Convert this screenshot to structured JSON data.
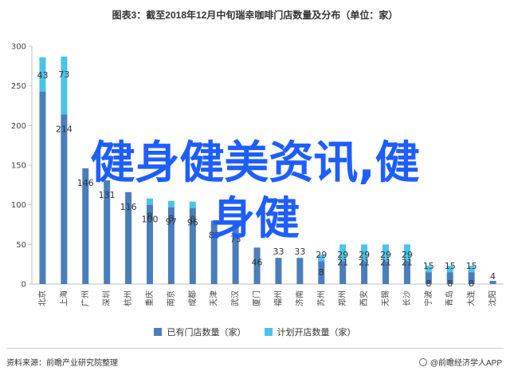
{
  "title": "图表3：截至2018年12月中旬瑞幸咖啡门店数量及分布（单位：家）",
  "overlay_lines": [
    "健身健美资讯,健",
    "身健"
  ],
  "footer": {
    "source": "资料来源：前瞻产业研究院整理",
    "brand": "@前瞻经济学人APP"
  },
  "colors": {
    "existing": "#4a7ebb",
    "planned": "#4bc3e8"
  },
  "chart_data": {
    "type": "bar",
    "stacked": true,
    "categories": [
      "北京",
      "上海",
      "广州",
      "深圳",
      "杭州",
      "重庆",
      "南京",
      "成都",
      "天津",
      "武汉",
      "厦门",
      "福州",
      "济南",
      "苏州",
      "郑州",
      "西安",
      "无锡",
      "长沙",
      "宁波",
      "青岛",
      "大连",
      "沈阳"
    ],
    "series": [
      {
        "name": "已有门店数量（家）",
        "values": [
          243,
          214,
          146,
          131,
          116,
          100,
          97,
          96,
          80,
          75,
          46,
          33,
          33,
          29,
          29,
          29,
          29,
          29,
          15,
          15,
          15,
          4
        ]
      },
      {
        "name": "计划开店数量（家）",
        "values": [
          43,
          73,
          0,
          0,
          0,
          8,
          8,
          8,
          0,
          0,
          0,
          0,
          0,
          8,
          21,
          21,
          21,
          21,
          8,
          8,
          8,
          0
        ]
      }
    ],
    "value_labels": {
      "existing": [
        "",
        "214",
        "146",
        "131",
        "116",
        "100",
        "97",
        "96",
        "80",
        "75",
        "46",
        "33",
        "33",
        "29",
        "29",
        "29",
        "29",
        "29",
        "15",
        "15",
        "15",
        "4"
      ],
      "planned": [
        "43",
        "73",
        "",
        "",
        "",
        "8",
        "8",
        "8",
        "",
        "",
        "",
        "",
        "",
        "8",
        "21",
        "21",
        "21",
        "21",
        "8",
        "8",
        "8",
        ""
      ]
    },
    "ylim": [
      0,
      300
    ],
    "yticks": [
      0,
      50,
      100,
      150,
      200,
      250,
      300
    ],
    "legend_position": "bottom",
    "grid": false,
    "xlabel": "",
    "ylabel": ""
  }
}
